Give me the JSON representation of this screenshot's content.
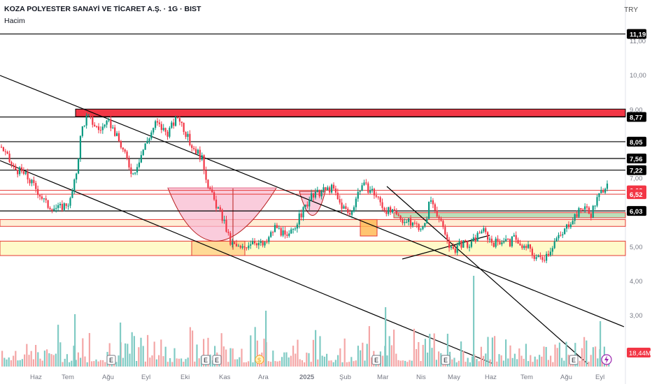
{
  "header": {
    "symbol_line": "KOZA POLYESTER SANAYİ VE TİCARET A.Ş. · 1G · BIST",
    "indicator": "Hacim",
    "currency": "TRY"
  },
  "chart_data": {
    "type": "candlestick",
    "title": "KOZA POLYESTER SANAYİ VE TİCARET A.Ş. · 1G · BIST",
    "y_axis": {
      "ticks": [
        "11,00",
        "10,00",
        "9,00",
        "8,00",
        "7,00",
        "6,00",
        "5,00",
        "4,00",
        "3,00"
      ],
      "range": [
        1.9,
        11.8
      ]
    },
    "x_axis": {
      "ticks": [
        "Haz",
        "Tem",
        "Ağu",
        "Eyl",
        "Eki",
        "Kas",
        "Ara",
        "2025",
        "Şub",
        "Mar",
        "Nis",
        "May",
        "Haz",
        "Tem",
        "Ağu",
        "Eyl"
      ]
    },
    "price_levels": [
      {
        "value": 11.19,
        "label": "11,19",
        "style": "black"
      },
      {
        "value": 8.77,
        "label": "8,77",
        "style": "black"
      },
      {
        "value": 8.05,
        "label": "8,05",
        "style": "black"
      },
      {
        "value": 7.56,
        "label": "7,56",
        "style": "black"
      },
      {
        "value": 7.22,
        "label": "7,22",
        "style": "black"
      },
      {
        "value": 6.63,
        "label": "6,63",
        "style": "red"
      },
      {
        "value": 6.52,
        "label": "6,52",
        "style": "red"
      },
      {
        "value": 6.03,
        "label": "6,03",
        "style": "black"
      }
    ],
    "zones": [
      {
        "name": "red-supply-zone",
        "from": 8.78,
        "to": 9.0,
        "color": "#f23645"
      },
      {
        "name": "green-zone",
        "from": 5.83,
        "to": 5.98,
        "color": "#81c784"
      },
      {
        "name": "orange-zone",
        "from": 5.58,
        "to": 5.78,
        "color": "#ffe0b2"
      },
      {
        "name": "yellow-zone",
        "from": 4.73,
        "to": 5.15,
        "color": "#fff59d"
      }
    ],
    "close_path": [
      [
        0,
        7.9
      ],
      [
        2,
        7.3
      ],
      [
        4,
        7.1
      ],
      [
        6,
        6.7
      ],
      [
        8,
        6.2
      ],
      [
        10,
        6.1
      ],
      [
        12,
        6.3
      ],
      [
        13,
        7.0
      ],
      [
        14,
        8.4
      ],
      [
        15,
        8.8
      ],
      [
        17,
        8.4
      ],
      [
        19,
        8.6
      ],
      [
        21,
        7.9
      ],
      [
        23,
        7.1
      ],
      [
        25,
        7.9
      ],
      [
        27,
        8.6
      ],
      [
        29,
        8.3
      ],
      [
        31,
        8.8
      ],
      [
        33,
        8.0
      ],
      [
        35,
        7.6
      ],
      [
        36,
        6.9
      ],
      [
        37,
        6.4
      ],
      [
        39,
        5.7
      ],
      [
        40,
        5.1
      ],
      [
        42,
        4.9
      ],
      [
        44,
        5.2
      ],
      [
        46,
        5.0
      ],
      [
        48,
        5.6
      ],
      [
        50,
        5.2
      ],
      [
        52,
        5.8
      ],
      [
        54,
        6.4
      ],
      [
        56,
        6.6
      ],
      [
        58,
        6.7
      ],
      [
        59,
        6.3
      ],
      [
        61,
        5.9
      ],
      [
        62,
        6.4
      ],
      [
        63,
        6.8
      ],
      [
        65,
        6.6
      ],
      [
        67,
        6.1
      ],
      [
        69,
        5.9
      ],
      [
        71,
        5.7
      ],
      [
        73,
        5.6
      ],
      [
        74,
        5.5
      ],
      [
        75,
        6.4
      ],
      [
        76,
        6.1
      ],
      [
        77,
        5.6
      ],
      [
        78,
        5.2
      ],
      [
        79,
        4.8
      ],
      [
        80,
        5.1
      ],
      [
        82,
        5.0
      ],
      [
        84,
        5.5
      ],
      [
        86,
        5.1
      ],
      [
        88,
        5.2
      ],
      [
        89,
        5.1
      ],
      [
        90,
        5.3
      ],
      [
        91,
        4.9
      ],
      [
        92,
        5.0
      ],
      [
        93,
        4.75
      ],
      [
        94,
        4.65
      ],
      [
        95,
        4.7
      ],
      [
        96,
        4.9
      ],
      [
        97,
        5.2
      ],
      [
        98,
        5.3
      ],
      [
        99,
        5.6
      ],
      [
        100,
        5.85
      ],
      [
        101,
        6.0
      ],
      [
        102,
        6.2
      ],
      [
        103,
        5.9
      ],
      [
        104,
        6.3
      ],
      [
        105,
        6.6
      ],
      [
        106,
        6.9
      ]
    ],
    "volume_axis_label": "18,44M",
    "event_markers": [
      "E",
      "E",
      "E",
      "$",
      "E",
      "E",
      "E"
    ],
    "patterns": [
      "descending channel",
      "cup and handle"
    ]
  }
}
